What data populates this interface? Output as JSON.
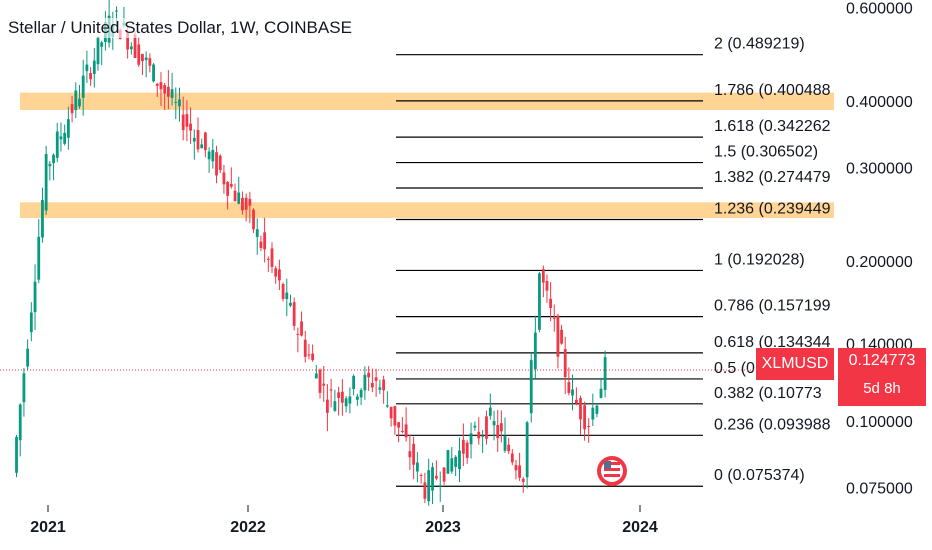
{
  "header": {
    "title": "Stellar / United States Dollar, 1W, COINBASE"
  },
  "price_tag": {
    "symbol": "XLMUSD",
    "price": "0.124773",
    "countdown": "5d 8h"
  },
  "colors": {
    "up": "#089981",
    "down": "#f23645",
    "zone": "#ffb74d",
    "text": "#131722",
    "grid": "#000000"
  },
  "icons": {
    "event": "us-flag-icon"
  },
  "chart_data": {
    "type": "candlestick",
    "title": "Stellar / United States Dollar, 1W, COINBASE",
    "scale": "log",
    "ylim": [
      0.068,
      0.62
    ],
    "x_ticks": [
      "2021",
      "2022",
      "2023",
      "2024"
    ],
    "y_ticks": [
      "0.600000",
      "0.400000",
      "0.300000",
      "0.200000",
      "0.140000",
      "0.100000",
      "0.075000"
    ],
    "last_price": 0.124773,
    "fibonacci": [
      {
        "level": "0",
        "label": "0 (0.075374)",
        "price": 0.075374
      },
      {
        "level": "0.236",
        "label": "0.236 (0.093988",
        "price": 0.093988
      },
      {
        "level": "0.382",
        "label": "0.382 (0.10773",
        "price": 0.10773
      },
      {
        "level": "0.5",
        "label": "0.5 (0",
        "price": 0.12
      },
      {
        "level": "0.618",
        "label": "0.618 (0.134344",
        "price": 0.134344
      },
      {
        "level": "0.786",
        "label": "0.786 (0.157199",
        "price": 0.157199
      },
      {
        "level": "1",
        "label": "1 (0.192028)",
        "price": 0.192028
      },
      {
        "level": "1.236",
        "label": "1.236 (0.239449",
        "price": 0.239449
      },
      {
        "level": "1.382",
        "label": "1.382 (0.274479",
        "price": 0.274479
      },
      {
        "level": "1.5",
        "label": "1.5 (0.306502)",
        "price": 0.306502
      },
      {
        "level": "1.618",
        "label": "1.618 (0.342262",
        "price": 0.342262
      },
      {
        "level": "1.786",
        "label": "1.786 (0.400488",
        "price": 0.400488
      },
      {
        "level": "2",
        "label": "2 (0.489219)",
        "price": 0.489219
      }
    ],
    "zones": [
      {
        "low": 0.385,
        "high": 0.415
      },
      {
        "low": 0.241,
        "high": 0.258
      }
    ],
    "key_points": [
      {
        "date": "2020-11",
        "price": 0.08
      },
      {
        "date": "2021-01",
        "price": 0.3
      },
      {
        "date": "2021-05",
        "price": 0.58
      },
      {
        "date": "2021-09",
        "price": 0.38
      },
      {
        "date": "2022-01",
        "price": 0.25
      },
      {
        "date": "2022-06",
        "price": 0.11
      },
      {
        "date": "2022-09",
        "price": 0.12
      },
      {
        "date": "2022-12",
        "price": 0.075
      },
      {
        "date": "2023-04",
        "price": 0.1
      },
      {
        "date": "2023-06",
        "price": 0.08
      },
      {
        "date": "2023-07",
        "price": 0.19
      },
      {
        "date": "2023-09",
        "price": 0.11
      },
      {
        "date": "2023-10",
        "price": 0.1
      },
      {
        "date": "2023-11",
        "price": 0.125
      }
    ]
  }
}
